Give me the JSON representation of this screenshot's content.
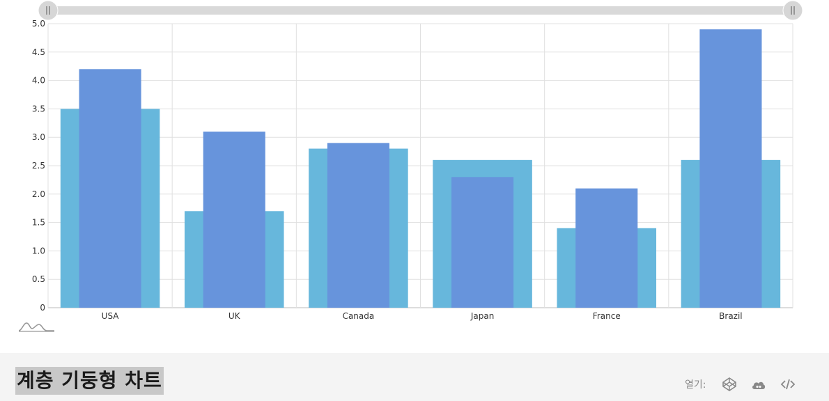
{
  "chart_data": {
    "type": "bar",
    "categories": [
      "USA",
      "UK",
      "Canada",
      "Japan",
      "France",
      "Brazil"
    ],
    "series": [
      {
        "values": [
          3.5,
          1.7,
          2.8,
          2.6,
          1.4,
          2.6
        ]
      },
      {
        "values": [
          4.2,
          3.1,
          2.9,
          2.3,
          2.1,
          4.9
        ]
      }
    ],
    "ylim": [
      0,
      5
    ],
    "y_ticks": [
      "0",
      "0.5",
      "1.0",
      "1.5",
      "2.0",
      "2.5",
      "3.0",
      "3.5",
      "4.0",
      "4.5",
      "5.0"
    ],
    "grid": true,
    "colors": [
      "#67b7dc",
      "#6794dc"
    ],
    "scrollbar": {
      "start": 0,
      "end": 1
    }
  },
  "footer": {
    "title": "계층 기둥형 차트",
    "open_label": "열기:",
    "icons": [
      "codepen-icon",
      "cloud-icon",
      "code-icon"
    ]
  },
  "logo_icon": "amcharts-logo-icon"
}
